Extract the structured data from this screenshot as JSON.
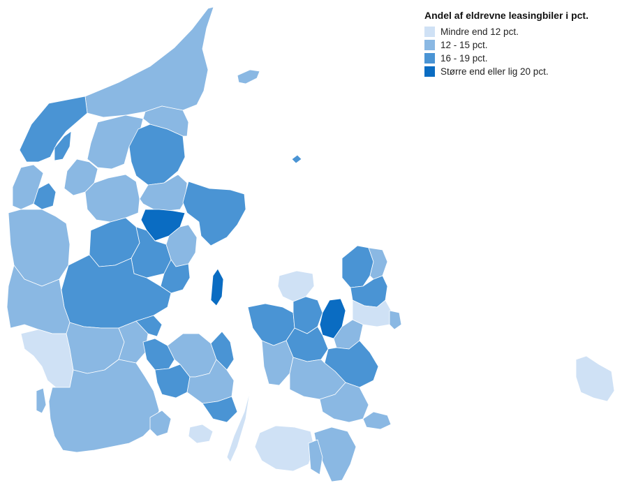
{
  "legend": {
    "title": "Andel af eldrevne leasingbiler i pct.",
    "items": [
      {
        "label": "Mindre end 12 pct.",
        "color": "#cfe1f5"
      },
      {
        "label": "12 - 15 pct.",
        "color": "#8ab8e3"
      },
      {
        "label": "16 - 19 pct.",
        "color": "#4a94d4"
      },
      {
        "label": "Større end eller lig 20 pct.",
        "color": "#0a6cc2"
      }
    ]
  },
  "classes": {
    "c1": "#cfe1f5",
    "c2": "#8ab8e3",
    "c3": "#4a94d4",
    "c4": "#0a6cc2"
  }
}
